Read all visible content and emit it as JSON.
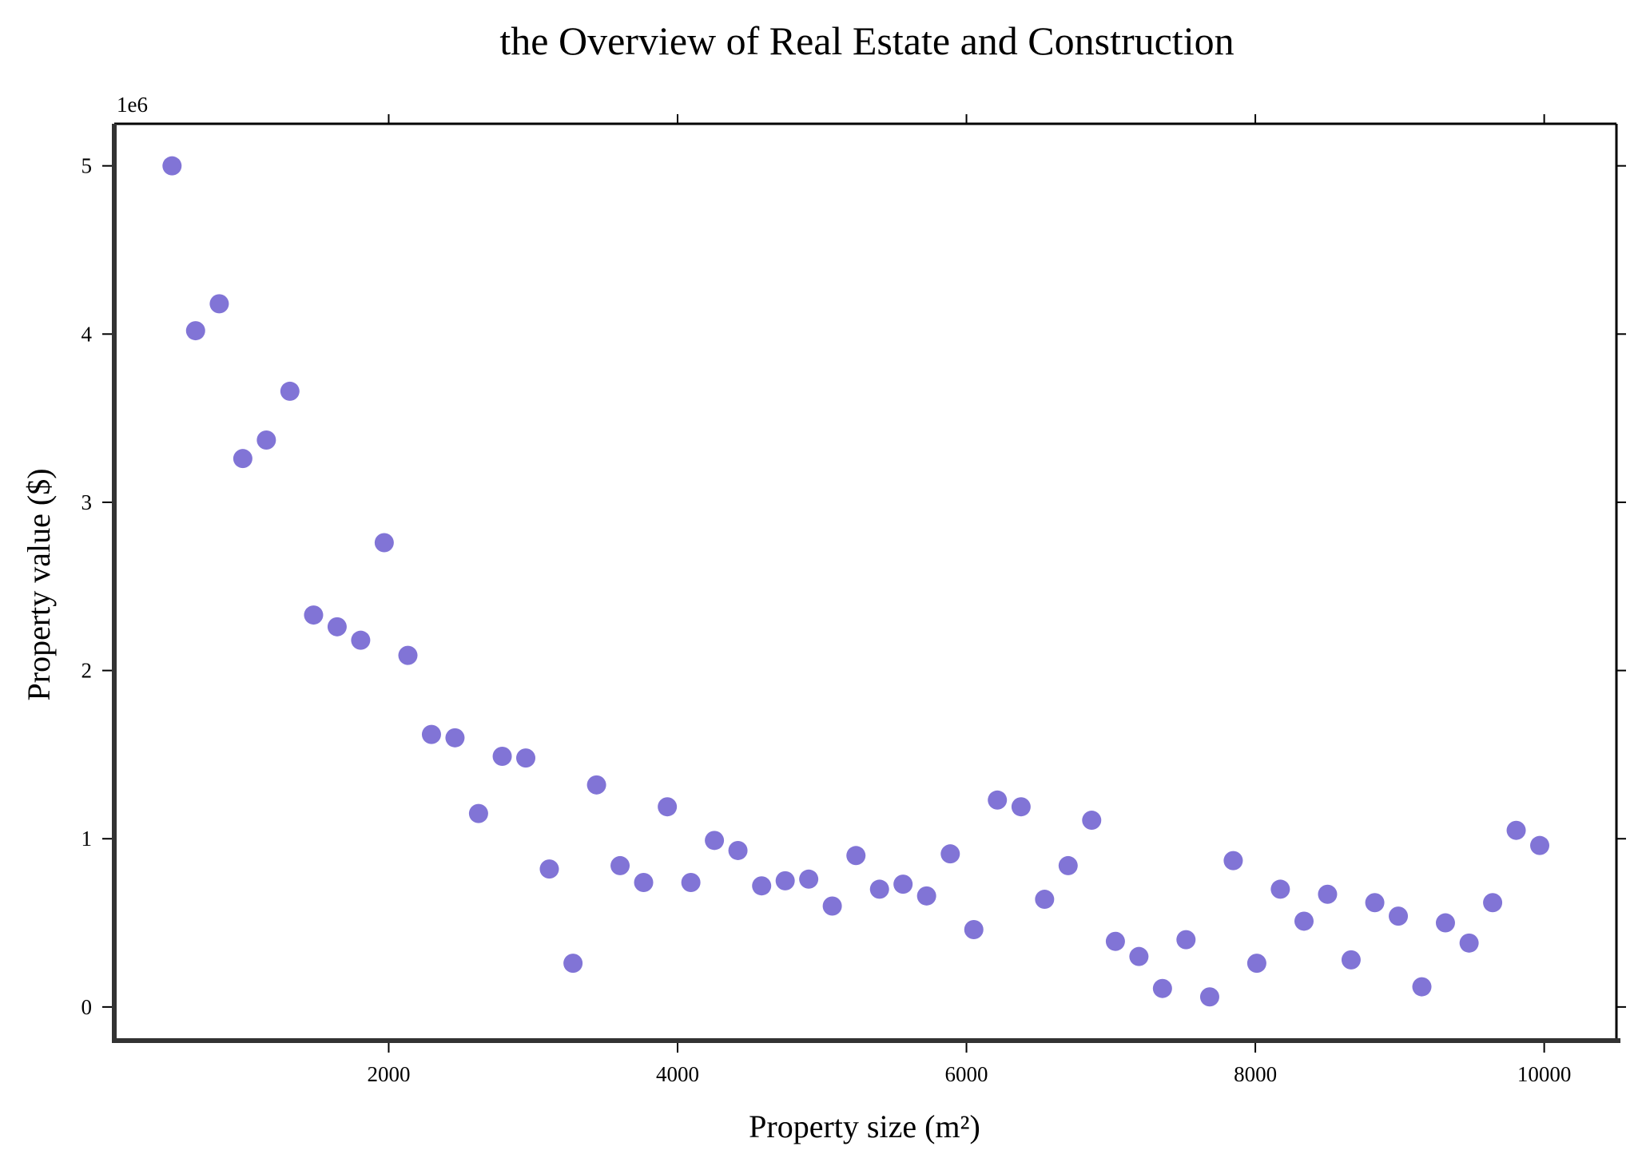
{
  "chart_data": {
    "type": "scatter",
    "title": "the Overview of Real Estate and Construction",
    "xlabel": "Property size (m²)",
    "ylabel": "Property value ($)",
    "y_offset_label": "1e6",
    "xlim": [
      100,
      10500
    ],
    "ylim": [
      -0.2,
      5.25
    ],
    "y_scale_factor": 1000000,
    "xticks": [
      2000,
      4000,
      6000,
      8000,
      10000
    ],
    "xtick_labels": [
      "2000",
      "4000",
      "6000",
      "8000",
      "10000"
    ],
    "yticks": [
      0,
      1,
      2,
      3,
      4,
      5
    ],
    "ytick_labels": [
      "0",
      "1",
      "2",
      "3",
      "4",
      "5"
    ],
    "grid": false,
    "marker_color": "#8174d6",
    "series": [
      {
        "points": [
          [
            500,
            5.0
          ],
          [
            663,
            4.02
          ],
          [
            827,
            4.18
          ],
          [
            990,
            3.26
          ],
          [
            1153,
            3.37
          ],
          [
            1316,
            3.66
          ],
          [
            1480,
            2.33
          ],
          [
            1643,
            2.26
          ],
          [
            1806,
            2.18
          ],
          [
            1969,
            2.76
          ],
          [
            2133,
            2.09
          ],
          [
            2296,
            1.62
          ],
          [
            2459,
            1.6
          ],
          [
            2622,
            1.15
          ],
          [
            2786,
            1.49
          ],
          [
            2949,
            1.48
          ],
          [
            3112,
            0.82
          ],
          [
            3276,
            0.26
          ],
          [
            3439,
            1.32
          ],
          [
            3602,
            0.84
          ],
          [
            3765,
            0.74
          ],
          [
            3929,
            1.19
          ],
          [
            4092,
            0.74
          ],
          [
            4255,
            0.99
          ],
          [
            4418,
            0.93
          ],
          [
            4582,
            0.72
          ],
          [
            4745,
            0.75
          ],
          [
            4908,
            0.76
          ],
          [
            5071,
            0.6
          ],
          [
            5235,
            0.9
          ],
          [
            5398,
            0.7
          ],
          [
            5561,
            0.73
          ],
          [
            5724,
            0.66
          ],
          [
            5888,
            0.91
          ],
          [
            6051,
            0.46
          ],
          [
            6214,
            1.23
          ],
          [
            6378,
            1.19
          ],
          [
            6541,
            0.64
          ],
          [
            6704,
            0.84
          ],
          [
            6867,
            1.11
          ],
          [
            7031,
            0.39
          ],
          [
            7194,
            0.3
          ],
          [
            7357,
            0.11
          ],
          [
            7520,
            0.4
          ],
          [
            7684,
            0.06
          ],
          [
            7847,
            0.87
          ],
          [
            8010,
            0.26
          ],
          [
            8173,
            0.7
          ],
          [
            8337,
            0.51
          ],
          [
            8500,
            0.67
          ],
          [
            8663,
            0.28
          ],
          [
            8827,
            0.62
          ],
          [
            8990,
            0.54
          ],
          [
            9153,
            0.12
          ],
          [
            9316,
            0.5
          ],
          [
            9480,
            0.38
          ],
          [
            9643,
            0.62
          ],
          [
            9806,
            1.05
          ],
          [
            9969,
            0.96
          ]
        ]
      }
    ]
  }
}
